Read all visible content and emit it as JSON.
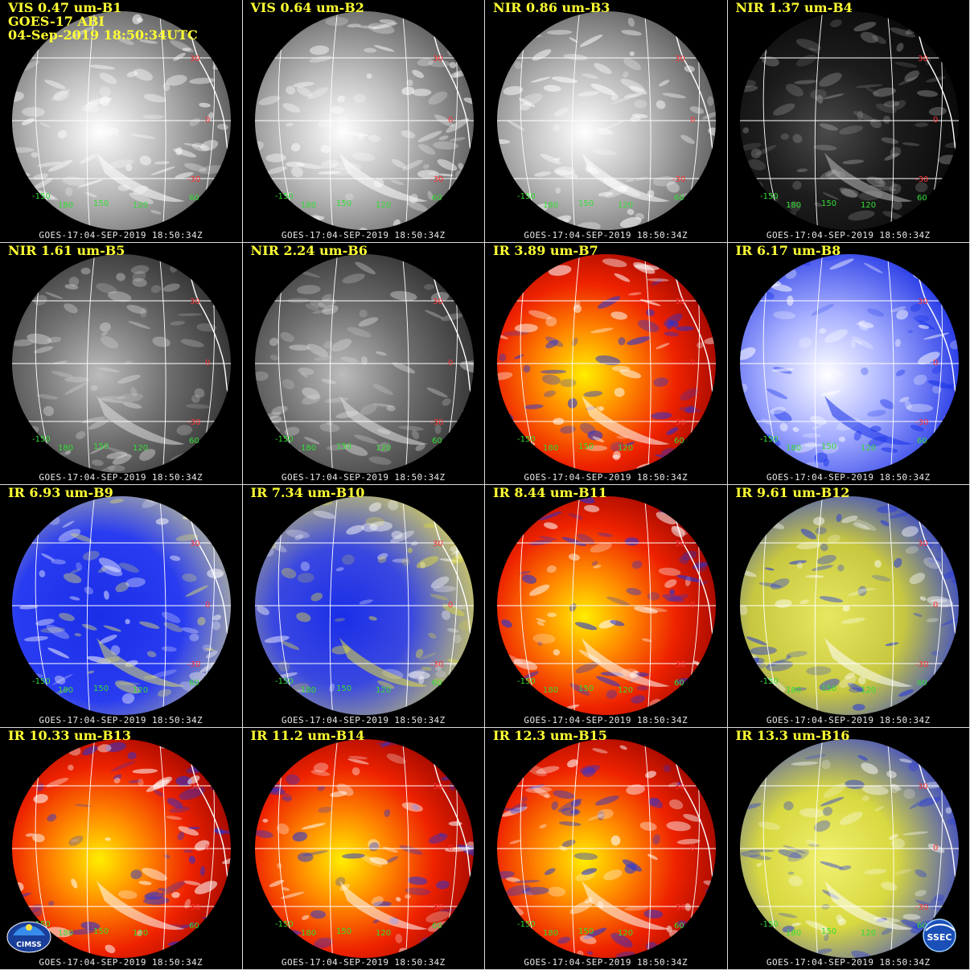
{
  "header": {
    "satellite": "GOES-17 ABI",
    "datetime": "04-Sep-2019 18:50:34UTC"
  },
  "footer_text": "GOES-17:04-SEP-2019  18:50:34Z",
  "grid_labels": {
    "lat": [
      "30",
      "0",
      "-30"
    ],
    "lon_top": [
      "-150",
      "60"
    ],
    "lon_bottom": [
      "180",
      "150",
      "120"
    ]
  },
  "logos": {
    "left": "CIMSS",
    "right": "SSEC"
  },
  "colors": {
    "label": "#ffff33",
    "lat_label": "#ff3333",
    "lon_label": "#33dd33",
    "grid": "#ffffff"
  },
  "panels": [
    {
      "label": "VIS 0.47 um-B1",
      "palette": "vis_bright"
    },
    {
      "label": "VIS 0.64 um-B2",
      "palette": "vis_bright"
    },
    {
      "label": "NIR 0.86 um-B3",
      "palette": "vis_bright"
    },
    {
      "label": "NIR 1.37 um-B4",
      "palette": "vis_dark"
    },
    {
      "label": "NIR 1.61 um-B5",
      "palette": "vis_mid"
    },
    {
      "label": "NIR 2.24 um-B6",
      "palette": "vis_mid"
    },
    {
      "label": "IR 3.89 um-B7",
      "palette": "ir_red"
    },
    {
      "label": "IR 6.17 um-B8",
      "palette": "wv_white"
    },
    {
      "label": "IR 6.93 um-B9",
      "palette": "wv_blue"
    },
    {
      "label": "IR 7.34 um-B10",
      "palette": "wv_blue_yellow"
    },
    {
      "label": "IR 8.44 um-B11",
      "palette": "ir_red"
    },
    {
      "label": "IR 9.61 um-B12",
      "palette": "ozone"
    },
    {
      "label": "IR 10.33 um-B13",
      "palette": "ir_red"
    },
    {
      "label": "IR 11.2 um-B14",
      "palette": "ir_red"
    },
    {
      "label": "IR 12.3 um-B15",
      "palette": "ir_red"
    },
    {
      "label": "IR 13.3 um-B16",
      "palette": "co2"
    }
  ]
}
